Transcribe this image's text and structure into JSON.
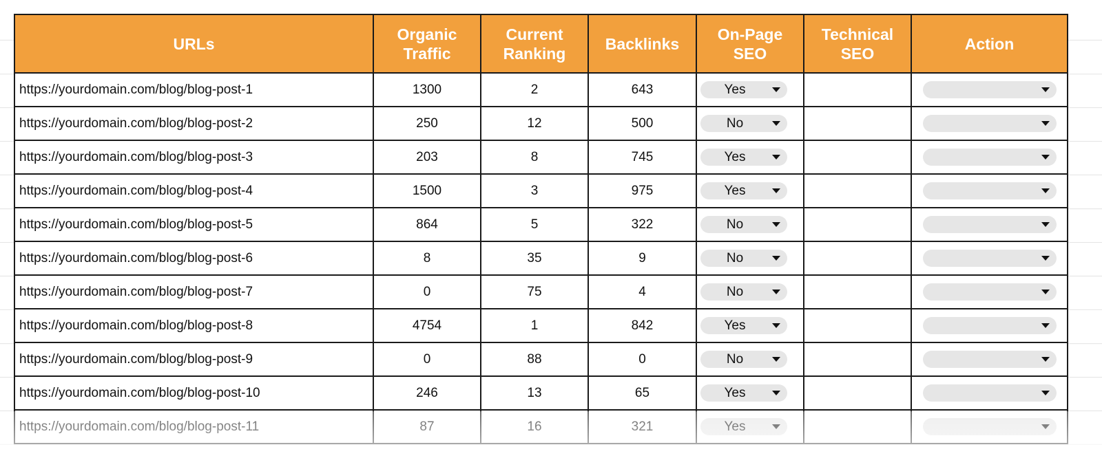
{
  "table": {
    "columns": [
      "URLs",
      "Organic Traffic",
      "Current Ranking",
      "Backlinks",
      "On-Page SEO",
      "Technical SEO",
      "Action"
    ],
    "rows": [
      [
        "https://yourdomain.com/blog/blog-post-1",
        1300,
        2,
        643,
        "Yes"
      ],
      [
        "https://yourdomain.com/blog/blog-post-2",
        250,
        12,
        500,
        "No"
      ],
      [
        "https://yourdomain.com/blog/blog-post-3",
        203,
        8,
        745,
        "Yes"
      ],
      [
        "https://yourdomain.com/blog/blog-post-4",
        1500,
        3,
        975,
        "Yes"
      ],
      [
        "https://yourdomain.com/blog/blog-post-5",
        864,
        5,
        322,
        "No"
      ],
      [
        "https://yourdomain.com/blog/blog-post-6",
        8,
        35,
        9,
        "No"
      ],
      [
        "https://yourdomain.com/blog/blog-post-7",
        0,
        75,
        4,
        "No"
      ],
      [
        "https://yourdomain.com/blog/blog-post-8",
        4754,
        1,
        842,
        "Yes"
      ],
      [
        "https://yourdomain.com/blog/blog-post-9",
        0,
        88,
        0,
        "No"
      ],
      [
        "https://yourdomain.com/blog/blog-post-10",
        246,
        13,
        65,
        "Yes"
      ],
      [
        "https://yourdomain.com/blog/blog-post-11",
        87,
        16,
        321,
        "Yes"
      ]
    ]
  }
}
